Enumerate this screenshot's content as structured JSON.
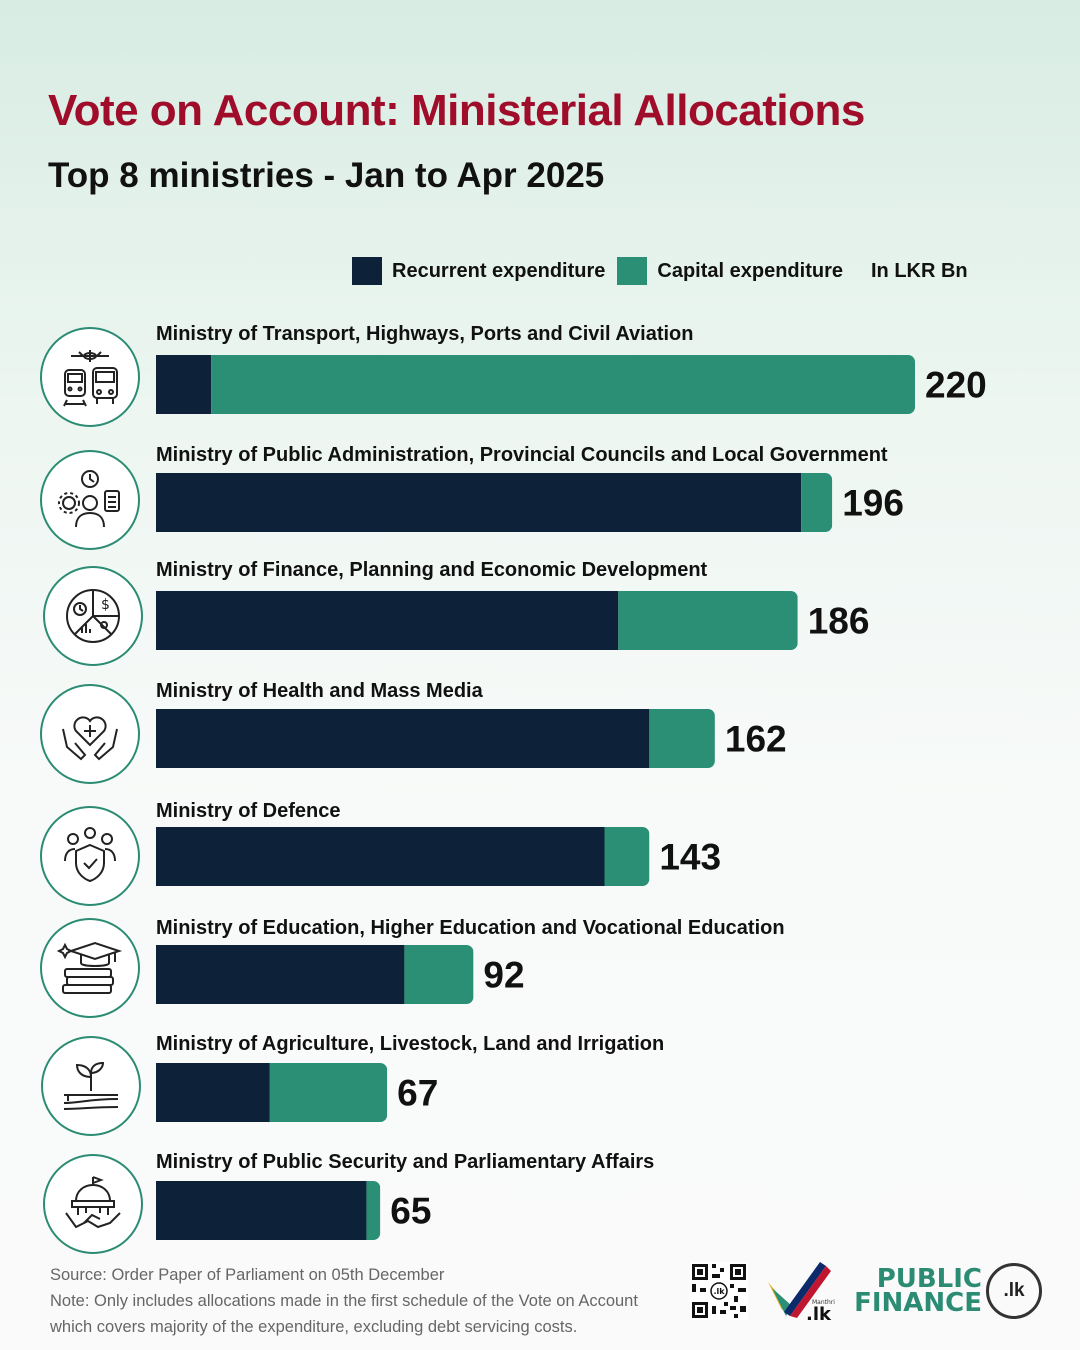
{
  "title": "Vote on Account: Ministerial Allocations",
  "subtitle": "Top 8 ministries - Jan to Apr 2025",
  "legend": {
    "recurrent": "Recurrent expenditure",
    "capital": "Capital expenditure",
    "unit": "In LKR Bn"
  },
  "colors": {
    "recurrent": "#0d2139",
    "capital": "#2a8f74",
    "title": "#a00d2a",
    "icon_ring": "#2b8c73"
  },
  "chart_data": {
    "type": "bar",
    "orientation": "horizontal",
    "stacked": true,
    "categories": [
      "Ministry of Transport, Highways, Ports and Civil Aviation",
      "Ministry of Public Administration, Provincial Councils and Local Government",
      "Ministry of Finance, Planning and Economic Development",
      "Ministry of Health and Mass Media",
      "Ministry of Defence",
      "Ministry of Education, Higher Education and Vocational Education",
      "Ministry of Agriculture, Livestock, Land and Irrigation",
      "Ministry of Public Security and Parliamentary Affairs"
    ],
    "series": [
      {
        "name": "Recurrent expenditure",
        "values": [
          16,
          187,
          134,
          143,
          130,
          72,
          33,
          61
        ]
      },
      {
        "name": "Capital expenditure",
        "values": [
          204,
          9,
          52,
          19,
          13,
          20,
          34,
          4
        ]
      }
    ],
    "totals": [
      220,
      196,
      186,
      162,
      143,
      92,
      67,
      65
    ],
    "xlim": [
      0,
      220
    ],
    "grid": false,
    "legend_position": "top-right"
  },
  "icons": [
    "transport-icon",
    "public-administration-icon",
    "finance-icon",
    "health-icon",
    "defence-icon",
    "education-icon",
    "agriculture-icon",
    "public-security-icon"
  ],
  "footer": {
    "source": "Source:  Order Paper of Parliament on 05th December",
    "note_line1": "Note: Only includes allocations made in the first schedule of the Vote on Account",
    "note_line2": "which covers majority of the expenditure, excluding debt servicing costs."
  },
  "logos": {
    "manthri_mark": ".lk",
    "manthri_small": "Manthri",
    "pf_line1": "PUBLIC",
    "pf_line2": "FINANCE",
    "pf_badge": ".lk",
    "qr_center": ".lk"
  }
}
